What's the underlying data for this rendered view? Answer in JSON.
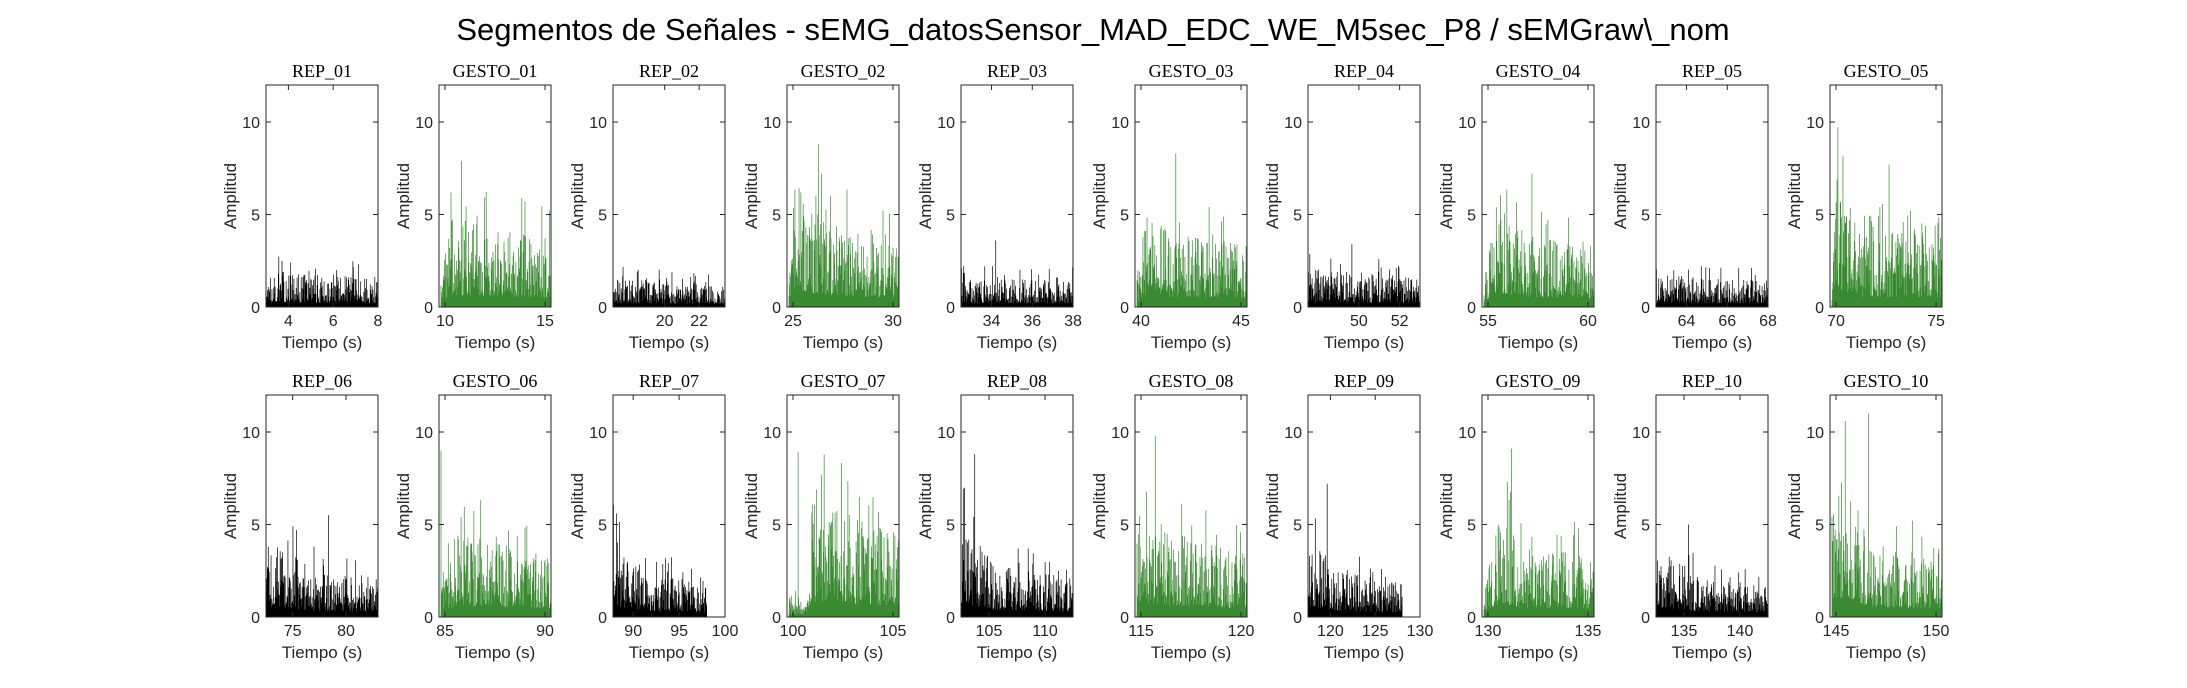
{
  "suptitle": "Segmentos de Señales - sEMG_datosSensor_MAD_EDC_WE_M5sec_P8 / sEMGraw\\_nom",
  "colors": {
    "rep": "#000000",
    "gesto": "#3a8a32"
  },
  "chart_data": [
    {
      "type": "bar",
      "title": "REP_01",
      "kind": "rep",
      "xlabel": "Tiempo (s)",
      "ylabel": "Amplitud",
      "xlim": [
        3,
        8
      ],
      "ylim": [
        0,
        12
      ],
      "xticks": [
        4,
        6,
        8
      ],
      "yticks": [
        0,
        5,
        10
      ],
      "x": [
        3,
        8
      ],
      "amplitude_profile": [
        [
          0,
          1.7
        ],
        [
          1,
          1.4
        ]
      ],
      "peak": 2.5
    },
    {
      "type": "bar",
      "title": "GESTO_01",
      "kind": "gesto",
      "xlabel": "Tiempo (s)",
      "ylabel": "Amplitud",
      "xlim": [
        9.7,
        15.3
      ],
      "ylim": [
        0,
        12
      ],
      "xticks": [
        10,
        15
      ],
      "yticks": [
        0,
        5,
        10
      ],
      "x": [
        9.8,
        15.3
      ],
      "amplitude_profile": [
        [
          0,
          1.5
        ],
        [
          0.08,
          4.2
        ],
        [
          0.5,
          3.8
        ],
        [
          1,
          3.2
        ]
      ],
      "peak": 7.9
    },
    {
      "type": "bar",
      "title": "REP_02",
      "kind": "rep",
      "xlabel": "Tiempo (s)",
      "ylabel": "Amplitud",
      "xlim": [
        17,
        23.5
      ],
      "ylim": [
        0,
        12
      ],
      "xticks": [
        20,
        22
      ],
      "yticks": [
        0,
        5,
        10
      ],
      "x": [
        17,
        23.5
      ],
      "amplitude_profile": [
        [
          0,
          1.4
        ],
        [
          1,
          1.0
        ]
      ],
      "peak": 2.0
    },
    {
      "type": "bar",
      "title": "GESTO_02",
      "kind": "gesto",
      "xlabel": "Tiempo (s)",
      "ylabel": "Amplitud",
      "xlim": [
        24.7,
        30.3
      ],
      "ylim": [
        0,
        12
      ],
      "xticks": [
        25,
        30
      ],
      "yticks": [
        0,
        5,
        10
      ],
      "x": [
        24.8,
        30.3
      ],
      "amplitude_profile": [
        [
          0,
          2.0
        ],
        [
          0.06,
          6.0
        ],
        [
          0.3,
          4.2
        ],
        [
          1,
          3.0
        ]
      ],
      "peak": 8.8
    },
    {
      "type": "bar",
      "title": "REP_03",
      "kind": "rep",
      "xlabel": "Tiempo (s)",
      "ylabel": "Amplitud",
      "xlim": [
        32.5,
        38
      ],
      "ylim": [
        0,
        12
      ],
      "xticks": [
        34,
        36,
        38
      ],
      "yticks": [
        0,
        5,
        10
      ],
      "x": [
        32.5,
        38
      ],
      "amplitude_profile": [
        [
          0,
          1.3
        ],
        [
          1,
          1.3
        ]
      ],
      "peak": 3.6
    },
    {
      "type": "bar",
      "title": "GESTO_03",
      "kind": "gesto",
      "xlabel": "Tiempo (s)",
      "ylabel": "Amplitud",
      "xlim": [
        39.7,
        45.3
      ],
      "ylim": [
        0,
        12
      ],
      "xticks": [
        40,
        45
      ],
      "yticks": [
        0,
        5,
        10
      ],
      "x": [
        39.8,
        45.3
      ],
      "amplitude_profile": [
        [
          0,
          1.5
        ],
        [
          0.1,
          5.5
        ],
        [
          0.3,
          3.5
        ],
        [
          1,
          3.0
        ]
      ],
      "peak": 8.3
    },
    {
      "type": "bar",
      "title": "REP_04",
      "kind": "rep",
      "xlabel": "Tiempo (s)",
      "ylabel": "Amplitud",
      "xlim": [
        47.5,
        53
      ],
      "ylim": [
        0,
        12
      ],
      "xticks": [
        50,
        52
      ],
      "yticks": [
        0,
        5,
        10
      ],
      "x": [
        47.5,
        53
      ],
      "amplitude_profile": [
        [
          0,
          1.8
        ],
        [
          1,
          1.4
        ]
      ],
      "peak": 3.4
    },
    {
      "type": "bar",
      "title": "GESTO_04",
      "kind": "gesto",
      "xlabel": "Tiempo (s)",
      "ylabel": "Amplitud",
      "xlim": [
        54.7,
        60.3
      ],
      "ylim": [
        0,
        12
      ],
      "xticks": [
        55,
        60
      ],
      "yticks": [
        0,
        5,
        10
      ],
      "x": [
        54.8,
        60.3
      ],
      "amplitude_profile": [
        [
          0,
          1.5
        ],
        [
          0.12,
          5.0
        ],
        [
          0.4,
          3.5
        ],
        [
          1,
          3.0
        ]
      ],
      "peak": 7.2
    },
    {
      "type": "bar",
      "title": "REP_05",
      "kind": "rep",
      "xlabel": "Tiempo (s)",
      "ylabel": "Amplitud",
      "xlim": [
        62.5,
        68
      ],
      "ylim": [
        0,
        12
      ],
      "xticks": [
        64,
        66,
        68
      ],
      "yticks": [
        0,
        5,
        10
      ],
      "x": [
        62.5,
        68
      ],
      "amplitude_profile": [
        [
          0,
          1.5
        ],
        [
          1,
          1.3
        ]
      ],
      "peak": 2.1
    },
    {
      "type": "bar",
      "title": "GESTO_05",
      "kind": "gesto",
      "xlabel": "Tiempo (s)",
      "ylabel": "Amplitud",
      "xlim": [
        69.7,
        75.3
      ],
      "ylim": [
        0,
        12
      ],
      "xticks": [
        70,
        75
      ],
      "yticks": [
        0,
        5,
        10
      ],
      "x": [
        69.8,
        75.3
      ],
      "amplitude_profile": [
        [
          0,
          2.5
        ],
        [
          0.05,
          6.5
        ],
        [
          0.25,
          3.5
        ],
        [
          1,
          3.5
        ]
      ],
      "peak": 7.7
    },
    {
      "type": "bar",
      "title": "REP_06",
      "kind": "rep",
      "xlabel": "Tiempo (s)",
      "ylabel": "Amplitud",
      "xlim": [
        72.5,
        83
      ],
      "ylim": [
        0,
        12
      ],
      "xticks": [
        75,
        80
      ],
      "yticks": [
        0,
        5,
        10
      ],
      "x": [
        72.5,
        83
      ],
      "amplitude_profile": [
        [
          0,
          3.8
        ],
        [
          0.5,
          2.0
        ],
        [
          1,
          2.0
        ]
      ],
      "peak": 5.5
    },
    {
      "type": "bar",
      "title": "GESTO_06",
      "kind": "gesto",
      "xlabel": "Tiempo (s)",
      "ylabel": "Amplitud",
      "xlim": [
        84.7,
        90.3
      ],
      "ylim": [
        0,
        12
      ],
      "xticks": [
        85,
        90
      ],
      "yticks": [
        0,
        5,
        10
      ],
      "x": [
        84.8,
        90.3
      ],
      "amplitude_profile": [
        [
          0,
          2.0
        ],
        [
          0.15,
          4.0
        ],
        [
          1,
          3.0
        ]
      ],
      "peak": 9.0
    },
    {
      "type": "bar",
      "title": "REP_07",
      "kind": "rep",
      "xlabel": "Tiempo (s)",
      "ylabel": "Amplitud",
      "xlim": [
        87.8,
        100
      ],
      "ylim": [
        0,
        12
      ],
      "xticks": [
        90,
        95,
        100
      ],
      "yticks": [
        0,
        5,
        10
      ],
      "x": [
        87.8,
        98
      ],
      "amplitude_profile": [
        [
          0,
          3.8
        ],
        [
          0.35,
          2.2
        ],
        [
          1,
          1.5
        ]
      ],
      "peak": 5.6
    },
    {
      "type": "bar",
      "title": "GESTO_07",
      "kind": "gesto",
      "xlabel": "Tiempo (s)",
      "ylabel": "Amplitud",
      "xlim": [
        99.7,
        105.3
      ],
      "ylim": [
        0,
        12
      ],
      "xticks": [
        100,
        105
      ],
      "yticks": [
        0,
        5,
        10
      ],
      "x": [
        99.8,
        105.3
      ],
      "amplitude_profile": [
        [
          0,
          1.0
        ],
        [
          0.18,
          1.0
        ],
        [
          0.2,
          5.5
        ],
        [
          1,
          4.0
        ]
      ],
      "peak": 8.9
    },
    {
      "type": "bar",
      "title": "REP_08",
      "kind": "rep",
      "xlabel": "Tiempo (s)",
      "ylabel": "Amplitud",
      "xlim": [
        102.5,
        112.5
      ],
      "ylim": [
        0,
        12
      ],
      "xticks": [
        105,
        110
      ],
      "yticks": [
        0,
        5,
        10
      ],
      "x": [
        102.5,
        112.5
      ],
      "amplitude_profile": [
        [
          0,
          5.0
        ],
        [
          0.3,
          2.5
        ],
        [
          1,
          1.8
        ]
      ],
      "peak": 8.8
    },
    {
      "type": "bar",
      "title": "GESTO_08",
      "kind": "gesto",
      "xlabel": "Tiempo (s)",
      "ylabel": "Amplitud",
      "xlim": [
        114.7,
        120.3
      ],
      "ylim": [
        0,
        12
      ],
      "xticks": [
        115,
        120
      ],
      "yticks": [
        0,
        5,
        10
      ],
      "x": [
        114.8,
        120.3
      ],
      "amplitude_profile": [
        [
          0,
          5.5
        ],
        [
          0.3,
          4.0
        ],
        [
          1,
          3.0
        ]
      ],
      "peak": 9.8
    },
    {
      "type": "bar",
      "title": "REP_09",
      "kind": "rep",
      "xlabel": "Tiempo (s)",
      "ylabel": "Amplitud",
      "xlim": [
        117.5,
        130
      ],
      "ylim": [
        0,
        12
      ],
      "xticks": [
        120,
        125,
        130
      ],
      "yticks": [
        0,
        5,
        10
      ],
      "x": [
        117.5,
        128
      ],
      "amplitude_profile": [
        [
          0,
          4.0
        ],
        [
          0.3,
          2.2
        ],
        [
          1,
          1.6
        ]
      ],
      "peak": 7.2
    },
    {
      "type": "bar",
      "title": "GESTO_09",
      "kind": "gesto",
      "xlabel": "Tiempo (s)",
      "ylabel": "Amplitud",
      "xlim": [
        129.7,
        135.3
      ],
      "ylim": [
        0,
        12
      ],
      "xticks": [
        130,
        135
      ],
      "yticks": [
        0,
        5,
        10
      ],
      "x": [
        129.8,
        135.3
      ],
      "amplitude_profile": [
        [
          0,
          1.5
        ],
        [
          0.15,
          5.0
        ],
        [
          0.35,
          3.2
        ],
        [
          1,
          3.0
        ]
      ],
      "peak": 9.1
    },
    {
      "type": "bar",
      "title": "REP_10",
      "kind": "rep",
      "xlabel": "Tiempo (s)",
      "ylabel": "Amplitud",
      "xlim": [
        132.5,
        142.5
      ],
      "ylim": [
        0,
        12
      ],
      "xticks": [
        135,
        140
      ],
      "yticks": [
        0,
        5,
        10
      ],
      "x": [
        132.5,
        142.5
      ],
      "amplitude_profile": [
        [
          0,
          3.5
        ],
        [
          0.4,
          1.8
        ],
        [
          1,
          1.5
        ]
      ],
      "peak": 5.0
    },
    {
      "type": "bar",
      "title": "GESTO_10",
      "kind": "gesto",
      "xlabel": "Tiempo (s)",
      "ylabel": "Amplitud",
      "xlim": [
        144.7,
        150.3
      ],
      "ylim": [
        0,
        12
      ],
      "xticks": [
        145,
        150
      ],
      "yticks": [
        0,
        5,
        10
      ],
      "x": [
        144.8,
        150.3
      ],
      "amplitude_profile": [
        [
          0,
          6.0
        ],
        [
          0.1,
          7.0
        ],
        [
          0.35,
          3.5
        ],
        [
          1,
          2.8
        ]
      ],
      "peak": 11.0
    }
  ]
}
